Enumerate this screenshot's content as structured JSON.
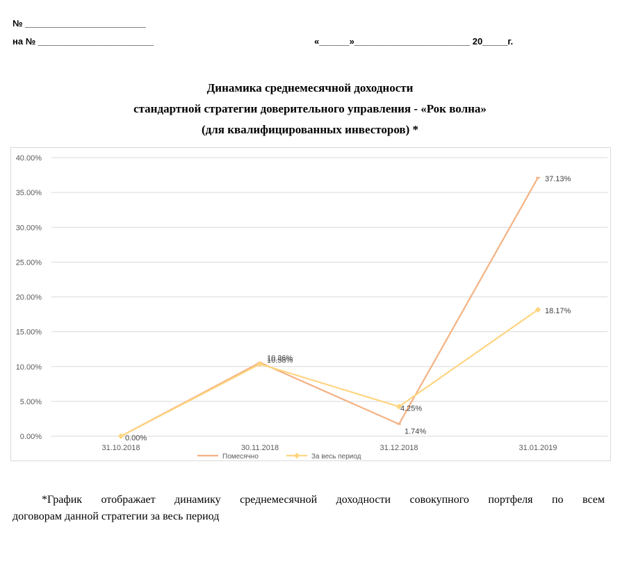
{
  "header": {
    "number_line": "№ ________________________",
    "to_number_line": "на № _______________________",
    "date_line": "«______»_______________________ 20_____г."
  },
  "title": {
    "line1": "Динамика среднемесячной доходности",
    "line2": "стандартной стратегии доверительного управления - «Рок волна»",
    "line3": "(для квалифицированных инвесторов) *"
  },
  "chart_data": {
    "type": "line",
    "categories": [
      "31.10.2018",
      "30.11.2018",
      "31.12.2018",
      "31.01.2019"
    ],
    "series": [
      {
        "name": "Помесячно",
        "values": [
          0.0,
          10.58,
          1.74,
          37.13
        ],
        "labels": [
          "0.00%",
          "10.58%",
          "1.74%",
          "37.13%"
        ],
        "color": "#f4b183"
      },
      {
        "name": "За весь период",
        "values": [
          0.0,
          10.36,
          4.25,
          18.17
        ],
        "labels": [
          "",
          "10.36%",
          "4.25%",
          "18.17%"
        ],
        "color": "#ffd580"
      }
    ],
    "ylim": [
      0,
      40
    ],
    "yticks": [
      "0.00%",
      "5.00%",
      "10.00%",
      "15.00%",
      "20.00%",
      "25.00%",
      "30.00%",
      "35.00%",
      "40.00%"
    ],
    "grid": true,
    "legend": "bottom"
  },
  "footnote": {
    "line1": "*График отображает динамику среднемесячной доходности совокупного портфеля по всем",
    "line2": "договорам данной стратегии за весь период"
  }
}
